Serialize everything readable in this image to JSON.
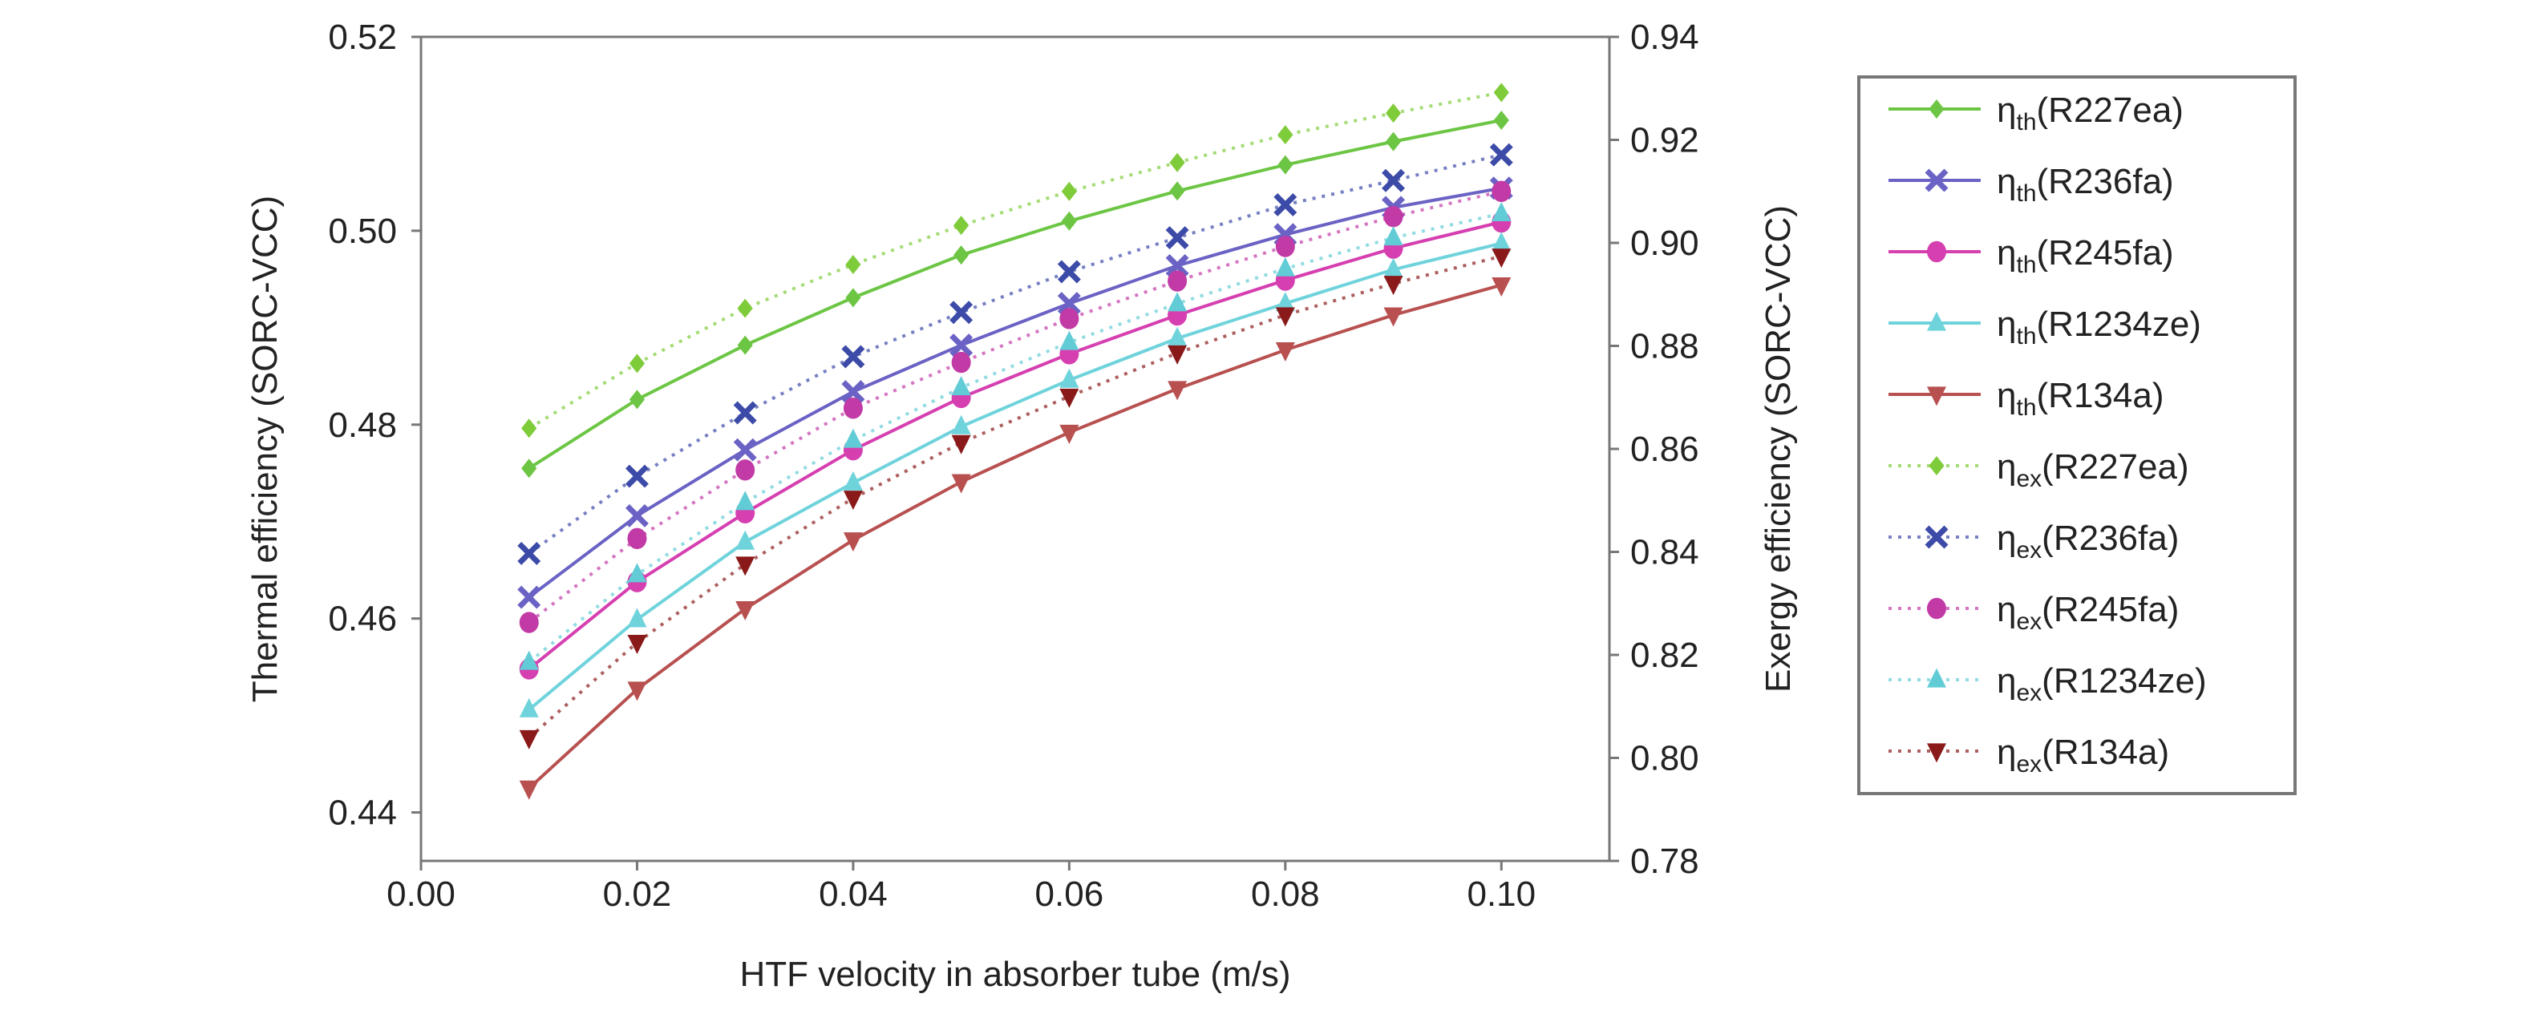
{
  "chart_data": {
    "type": "line",
    "xlabel": "HTF velocity in absorber tube (m/s)",
    "ylabel_left": "Thermal efficiency (SORC-VCC)",
    "ylabel_right": "Exergy efficiency (SORC-VCC)",
    "xlim": [
      0.0,
      0.11
    ],
    "ylim_left": [
      0.435,
      0.52
    ],
    "ylim_right": [
      0.78,
      0.94
    ],
    "x_ticks": [
      "0.00",
      "0.02",
      "0.04",
      "0.06",
      "0.08",
      "0.10"
    ],
    "y_ticks_left": [
      "0.44",
      "0.46",
      "0.48",
      "0.50",
      "0.52"
    ],
    "y_ticks_right": [
      "0.78",
      "0.80",
      "0.82",
      "0.84",
      "0.86",
      "0.88",
      "0.90",
      "0.92",
      "0.94"
    ],
    "grid": false,
    "legend_placement": "right-outside",
    "x": [
      0.01,
      0.02,
      0.03,
      0.04,
      0.05,
      0.06,
      0.07,
      0.08,
      0.09,
      0.1
    ],
    "series": [
      {
        "symbol": "η",
        "sub": "th",
        "fluid": "(R227ea)",
        "axis": "left",
        "style": "solid",
        "marker": "diamond",
        "color": "#6cc644",
        "values": [
          0.4755,
          0.4826,
          0.4882,
          0.4931,
          0.4975,
          0.501,
          0.5041,
          0.5068,
          0.5092,
          0.5114
        ]
      },
      {
        "symbol": "η",
        "sub": "th",
        "fluid": "(R236fa)",
        "axis": "left",
        "style": "solid",
        "marker": "x",
        "color": "#6a62c4",
        "values": [
          0.4622,
          0.4706,
          0.4774,
          0.4834,
          0.4882,
          0.4925,
          0.4964,
          0.4996,
          0.5024,
          0.5044
        ]
      },
      {
        "symbol": "η",
        "sub": "th",
        "fluid": "(R245fa)",
        "axis": "left",
        "style": "solid",
        "marker": "circle",
        "color": "#d63fb0",
        "values": [
          0.4548,
          0.4638,
          0.4709,
          0.4774,
          0.4828,
          0.4873,
          0.4913,
          0.4949,
          0.4982,
          0.5009
        ]
      },
      {
        "symbol": "η",
        "sub": "th",
        "fluid": "(R1234ze)",
        "axis": "left",
        "style": "solid",
        "marker": "triangle-up",
        "color": "#6fd3dc",
        "values": [
          0.4506,
          0.4599,
          0.4679,
          0.474,
          0.4798,
          0.4846,
          0.4889,
          0.4925,
          0.496,
          0.4987
        ]
      },
      {
        "symbol": "η",
        "sub": "th",
        "fluid": "(R134a)",
        "axis": "left",
        "style": "solid",
        "marker": "triangle-down",
        "color": "#b85050",
        "values": [
          0.4425,
          0.4527,
          0.461,
          0.4681,
          0.4741,
          0.4792,
          0.4837,
          0.4877,
          0.4913,
          0.4944
        ]
      },
      {
        "symbol": "η",
        "sub": "ex",
        "fluid": "(R227ea)",
        "axis": "right",
        "style": "dotted",
        "marker": "diamond",
        "color": "#7fcc3a",
        "values": [
          0.864,
          0.8766,
          0.8873,
          0.8958,
          0.9034,
          0.91,
          0.9156,
          0.921,
          0.9252,
          0.9292
        ]
      },
      {
        "symbol": "η",
        "sub": "ex",
        "fluid": "(R236fa)",
        "axis": "right",
        "style": "dotted",
        "marker": "x",
        "color": "#3c4aa8",
        "values": [
          0.8397,
          0.8547,
          0.867,
          0.8779,
          0.8865,
          0.8944,
          0.901,
          0.9074,
          0.9121,
          0.9171
        ]
      },
      {
        "symbol": "η",
        "sub": "ex",
        "fluid": "(R245fa)",
        "axis": "right",
        "style": "dotted",
        "marker": "circle",
        "color": "#c23aa6",
        "values": [
          0.8263,
          0.8426,
          0.8559,
          0.8679,
          0.8768,
          0.8853,
          0.8926,
          0.8993,
          0.9051,
          0.91
        ]
      },
      {
        "symbol": "η",
        "sub": "ex",
        "fluid": "(R1234ze)",
        "axis": "right",
        "style": "dotted",
        "marker": "triangle-up",
        "color": "#62ccd6",
        "values": [
          0.8186,
          0.8356,
          0.8496,
          0.8617,
          0.8719,
          0.8807,
          0.8882,
          0.895,
          0.901,
          0.9057
        ]
      },
      {
        "symbol": "η",
        "sub": "ex",
        "fluid": "(R134a)",
        "axis": "right",
        "style": "dotted",
        "marker": "triangle-down",
        "color": "#8a1a1a",
        "values": [
          0.8039,
          0.8224,
          0.8376,
          0.8504,
          0.8612,
          0.8702,
          0.8786,
          0.886,
          0.8921,
          0.8974
        ]
      }
    ]
  }
}
